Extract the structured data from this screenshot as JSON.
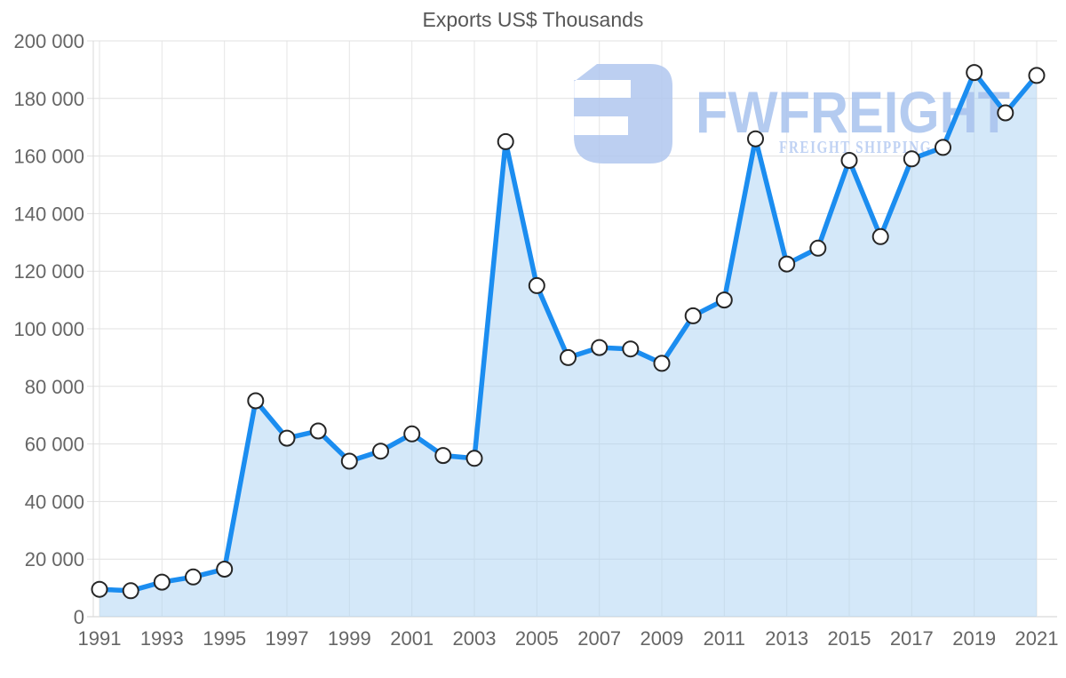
{
  "chart_data": {
    "type": "area",
    "title": "Exports US$ Thousands",
    "xlabel": "",
    "ylabel": "",
    "legend": "none",
    "grid": "on",
    "x": [
      1991,
      1992,
      1993,
      1994,
      1995,
      1996,
      1997,
      1998,
      1999,
      2000,
      2001,
      2002,
      2003,
      2004,
      2005,
      2006,
      2007,
      2008,
      2009,
      2010,
      2011,
      2012,
      2013,
      2014,
      2015,
      2016,
      2017,
      2018,
      2019,
      2020,
      2021
    ],
    "series": [
      {
        "name": "Exports US$ Thousands",
        "values": [
          9500,
          9000,
          12000,
          13800,
          16500,
          75000,
          62000,
          64500,
          54000,
          57500,
          63500,
          56000,
          55000,
          165000,
          115000,
          90000,
          93500,
          93000,
          88000,
          104500,
          110000,
          166000,
          122500,
          128000,
          158500,
          132000,
          159000,
          163000,
          189000,
          175000,
          188000
        ]
      }
    ],
    "ylim": [
      0,
      200000
    ],
    "xlim": [
      1991,
      2021
    ],
    "y_ticks": {
      "values": [
        0,
        20000,
        40000,
        60000,
        80000,
        100000,
        120000,
        140000,
        160000,
        180000,
        200000
      ],
      "labels": [
        "0",
        "20 000",
        "40 000",
        "60 000",
        "80 000",
        "100 000",
        "120 000",
        "140 000",
        "160 000",
        "180 000",
        "200 000"
      ]
    },
    "x_ticks": {
      "values": [
        1991,
        1993,
        1995,
        1997,
        1999,
        2001,
        2003,
        2005,
        2007,
        2009,
        2011,
        2013,
        2015,
        2017,
        2019,
        2021
      ],
      "labels": [
        "1991",
        "1993",
        "1995",
        "1997",
        "1999",
        "2001",
        "2003",
        "2005",
        "2007",
        "2009",
        "2011",
        "2013",
        "2015",
        "2017",
        "2019",
        "2021"
      ]
    },
    "colors": {
      "line": "#1b8df0",
      "area_fill_rgba": "rgba(169, 209, 243, 0.5)",
      "marker_fill": "#ffffff",
      "marker_stroke": "#262626",
      "gridline": "#e0e0e0",
      "gridline_vertical": "#e5e5e5",
      "zero_line": "#cfcfcf",
      "axis_line": "#d9d9d9",
      "axis_text": "#666666",
      "title_text": "#565656"
    }
  },
  "watermark": {
    "brand": "FWFREIGHT",
    "tagline": "FREIGHT SHIPPING",
    "color": "#aec6f0"
  }
}
